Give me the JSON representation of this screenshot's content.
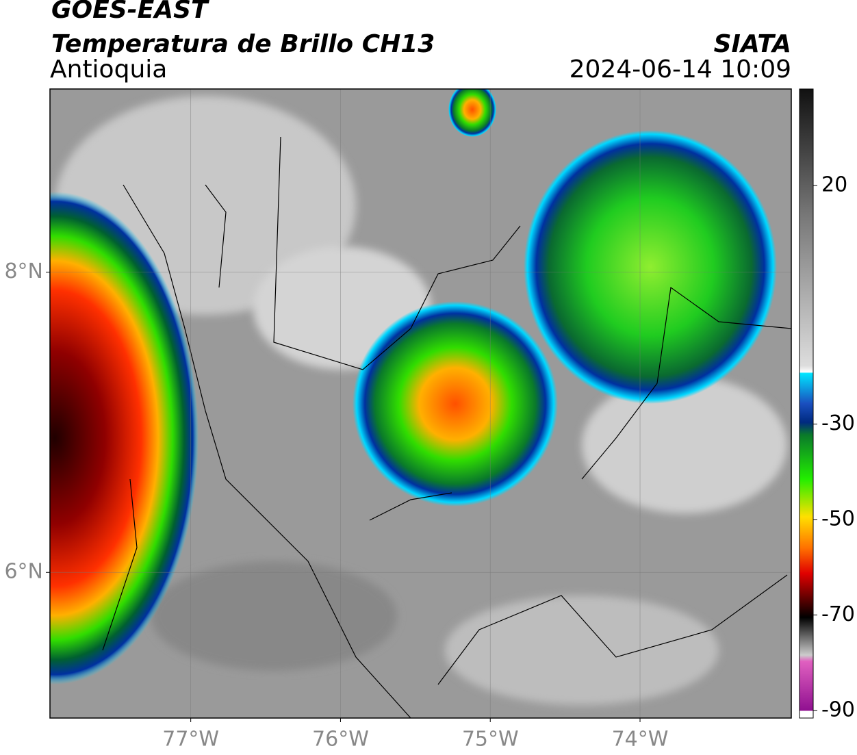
{
  "header": {
    "title": "GOES-EAST",
    "subtitle": "Temperatura de Brillo CH13",
    "region": "Antioquia",
    "source": "SIATA",
    "datetime": "2024-06-14 10:09"
  },
  "map": {
    "xlim": [
      -77.94,
      -72.99
    ],
    "ylim": [
      5.03,
      9.22
    ],
    "xticks": [
      {
        "value": -77,
        "label": "77°W"
      },
      {
        "value": -76,
        "label": "76°W"
      },
      {
        "value": -75,
        "label": "75°W"
      },
      {
        "value": -74,
        "label": "74°W"
      }
    ],
    "yticks": [
      {
        "value": 8,
        "label": "8°N"
      },
      {
        "value": 6,
        "label": "6°N"
      }
    ],
    "grid": true
  },
  "colorbar": {
    "lim": [
      -91.6,
      40.2
    ],
    "ticks": [
      20,
      -30,
      -50,
      -70,
      -90
    ]
  }
}
